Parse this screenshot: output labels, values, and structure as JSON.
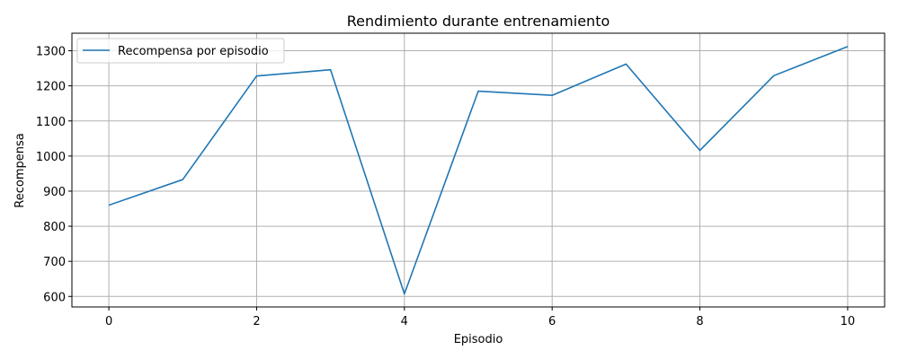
{
  "chart_data": {
    "type": "line",
    "title": "Rendimiento durante entrenamiento",
    "xlabel": "Episodio",
    "ylabel": "Recompensa",
    "x": [
      0,
      1,
      2,
      3,
      4,
      5,
      6,
      7,
      8,
      9,
      10
    ],
    "series": [
      {
        "name": "Recompensa por episodio",
        "color": "#1f77b4",
        "values": [
          860,
          933,
          1228,
          1246,
          607,
          1185,
          1173,
          1262,
          1016,
          1229,
          1312
        ]
      }
    ],
    "xlim": [
      -0.5,
      10.5
    ],
    "ylim": [
      570,
      1350
    ],
    "xticks": [
      0,
      2,
      4,
      6,
      8,
      10
    ],
    "yticks": [
      600,
      700,
      800,
      900,
      1000,
      1100,
      1200,
      1300
    ],
    "grid": true,
    "legend_position": "top-left"
  }
}
